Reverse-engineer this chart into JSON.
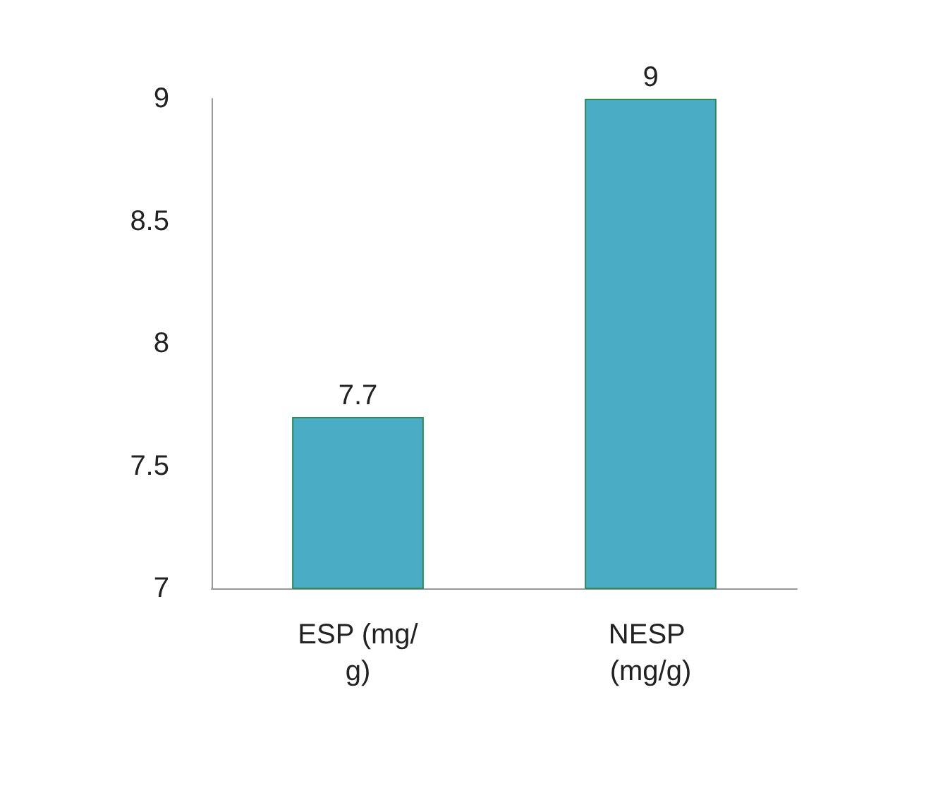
{
  "chart_data": {
    "type": "bar",
    "categories": [
      "ESP (mg/g)",
      "NESP (mg/g)"
    ],
    "values": [
      7.7,
      9
    ],
    "color": "#4bacc6",
    "ylim": [
      7,
      9
    ],
    "yticks": [
      7,
      7.5,
      8,
      8.5,
      9
    ],
    "grid": false,
    "data_labels": true
  }
}
